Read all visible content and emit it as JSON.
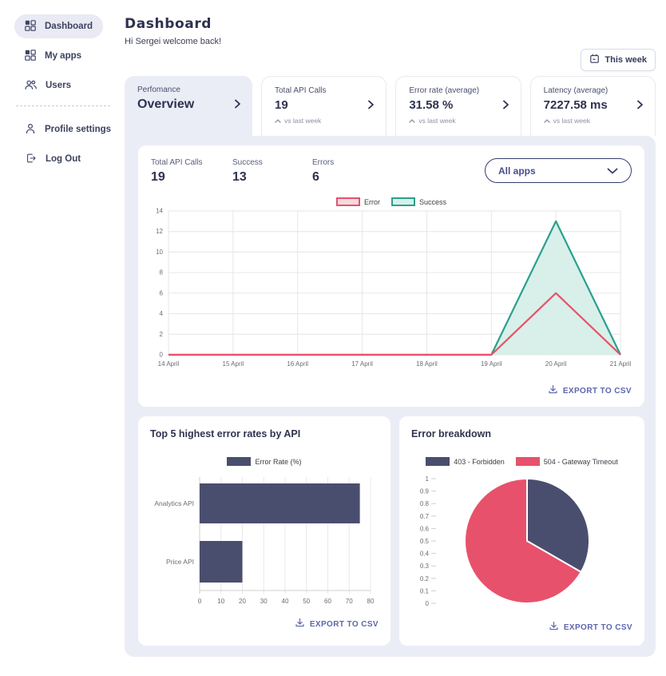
{
  "colors": {
    "accent": "#343A5E",
    "export": "#5D66AE",
    "panel": "#EBEDF6",
    "error": "#E8516B",
    "success": "#2AA08E",
    "bar": "#4A4E6E"
  },
  "sidebar": {
    "items": [
      {
        "label": "Dashboard",
        "icon": "grid-icon",
        "active": true
      },
      {
        "label": "My apps",
        "icon": "grid-icon",
        "active": false
      },
      {
        "label": "Users",
        "icon": "users-icon",
        "active": false
      },
      {
        "label": "Profile settings",
        "icon": "person-icon",
        "active": false
      },
      {
        "label": "Log Out",
        "icon": "logout-icon",
        "active": false
      }
    ]
  },
  "header": {
    "title": "Dashboard",
    "greeting": "Hi Sergei welcome back!",
    "week_button_label": "This week"
  },
  "tabs": [
    {
      "label": "Perfomance",
      "value": "Overview",
      "active": true
    },
    {
      "label": "Total API Calls",
      "value": "19",
      "trend_label": "vs last week",
      "active": false
    },
    {
      "label": "Error rate (average)",
      "value": "31.58 %",
      "trend_label": "vs last week",
      "active": false
    },
    {
      "label": "Latency (average)",
      "value": "7227.58 ms",
      "trend_label": "vs last week",
      "active": false
    }
  ],
  "overview": {
    "stats": [
      {
        "label": "Total API Calls",
        "value": "19"
      },
      {
        "label": "Success",
        "value": "13"
      },
      {
        "label": "Errors",
        "value": "6"
      }
    ],
    "apps_filter_value": "All apps",
    "export_label": "EXPORT TO CSV"
  },
  "cards": {
    "error_rates_title": "Top 5 highest error rates by API",
    "error_breakdown_title": "Error breakdown"
  },
  "chart_data": [
    {
      "type": "line",
      "x": [
        "14 April",
        "15 April",
        "16 April",
        "17 April",
        "18 April",
        "19 April",
        "20 April",
        "21 April"
      ],
      "series": [
        {
          "name": "Error",
          "values": [
            0,
            0,
            0,
            0,
            0,
            0,
            6,
            0
          ],
          "color": "#E8516B",
          "legend_fill": "#F3DBE0"
        },
        {
          "name": "Success",
          "values": [
            0,
            0,
            0,
            0,
            0,
            0,
            13,
            0
          ],
          "color": "#2AA08E",
          "fill": "#D8F0E9",
          "legend_fill": "#D8F0E9"
        }
      ],
      "ylim": [
        0,
        14
      ],
      "ytick_step": 2,
      "legend_position": "top",
      "grid": true
    },
    {
      "type": "bar",
      "orientation": "horizontal",
      "legend": "Error Rate (%)",
      "categories": [
        "Analytics API",
        "Price API"
      ],
      "values": [
        75,
        20
      ],
      "xlim": [
        0,
        80
      ],
      "xtick_step": 10,
      "color": "#4A4E6E",
      "grid": true
    },
    {
      "type": "pie",
      "labels": [
        "403 - Forbidden",
        "504 - Gateway Timeout"
      ],
      "values": [
        33.3,
        66.7
      ],
      "colors": [
        "#4A4E6E",
        "#E8516B"
      ],
      "ylim": [
        0,
        1
      ],
      "ytick_step": 0.1,
      "legend_position": "top"
    }
  ]
}
